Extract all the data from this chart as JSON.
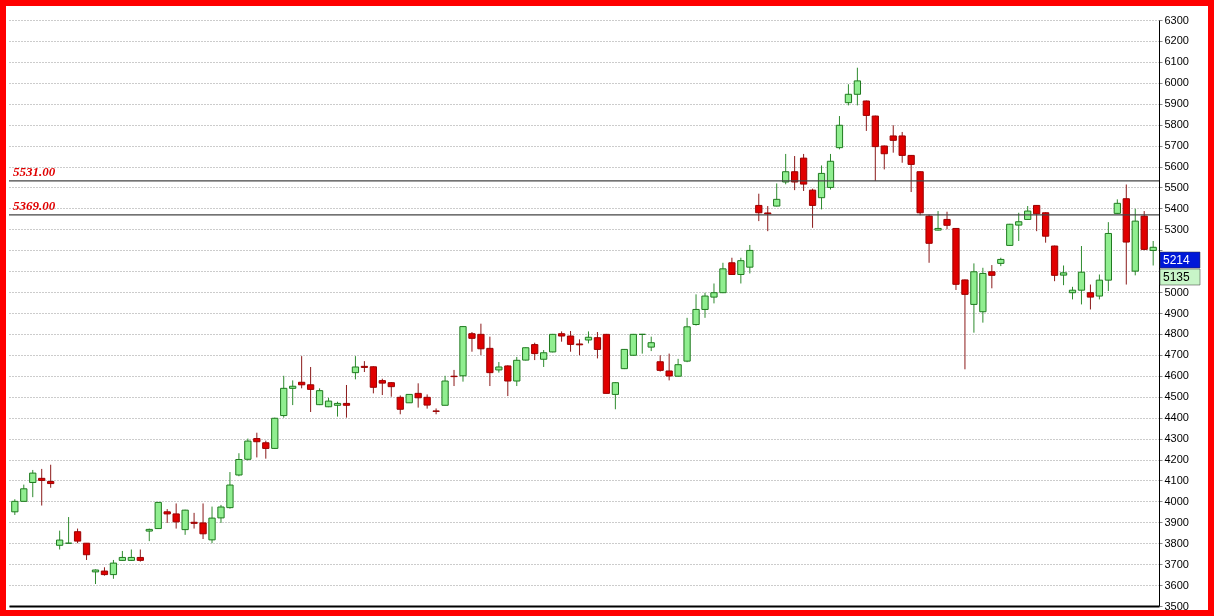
{
  "chart_data": {
    "type": "candlestick",
    "categories": [
      null,
      null,
      null,
      null,
      null,
      null,
      null,
      null,
      null,
      null,
      null,
      null,
      null,
      null,
      null,
      null,
      null,
      null,
      null,
      null,
      null,
      null,
      null,
      null,
      null,
      null,
      null,
      null,
      null,
      null,
      null,
      null,
      null,
      null,
      null,
      null,
      null,
      null,
      null,
      null,
      null,
      null,
      null,
      null,
      null,
      null,
      null,
      null,
      null,
      null,
      null,
      null,
      null,
      null,
      null,
      null,
      null,
      null,
      null,
      null,
      null,
      null,
      null,
      null,
      null,
      null,
      null,
      null,
      null,
      null,
      null,
      null,
      null,
      null,
      null,
      null,
      null,
      null,
      null,
      null,
      null,
      null,
      null,
      null,
      null,
      null,
      null,
      null,
      null,
      null,
      null,
      null,
      null,
      null,
      null,
      null,
      null,
      null,
      null,
      null,
      null,
      null,
      null,
      null,
      null,
      null,
      null,
      null,
      null,
      null,
      null,
      null,
      null,
      null,
      null,
      null,
      null,
      null,
      null,
      null,
      null,
      null,
      null,
      null,
      null,
      null,
      null,
      null
    ],
    "ohlc": [
      [
        3950,
        4010,
        3935,
        4000
      ],
      [
        4000,
        4080,
        4000,
        4060
      ],
      [
        4090,
        4150,
        4020,
        4135
      ],
      [
        4110,
        4155,
        3980,
        4100
      ],
      [
        4095,
        4175,
        4065,
        4085
      ],
      [
        3790,
        3860,
        3770,
        3815
      ],
      [
        3800,
        3925,
        3800,
        3800
      ],
      [
        3855,
        3870,
        3800,
        3810
      ],
      [
        3800,
        3800,
        3720,
        3745
      ],
      [
        3663,
        3675,
        3605,
        3672
      ],
      [
        3667,
        3685,
        3645,
        3650
      ],
      [
        3650,
        3720,
        3630,
        3705
      ],
      [
        3718,
        3763,
        3715,
        3732
      ],
      [
        3718,
        3770,
        3715,
        3732
      ],
      [
        3732,
        3770,
        3712,
        3718
      ],
      [
        3858,
        3870,
        3810,
        3866
      ],
      [
        3870,
        3997,
        3868,
        3995
      ],
      [
        3950,
        3963,
        3897,
        3940
      ],
      [
        3940,
        3990,
        3870,
        3902
      ],
      [
        3865,
        3960,
        3840,
        3958
      ],
      [
        3900,
        3945,
        3870,
        3895
      ],
      [
        3897,
        3990,
        3820,
        3845
      ],
      [
        3816,
        3975,
        3800,
        3920
      ],
      [
        3921,
        3983,
        3897,
        3973
      ],
      [
        3970,
        4140,
        3965,
        4078
      ],
      [
        4126,
        4230,
        4120,
        4200
      ],
      [
        4201,
        4300,
        4195,
        4288
      ],
      [
        4300,
        4328,
        4210,
        4285
      ],
      [
        4280,
        4290,
        4204,
        4253
      ],
      [
        4253,
        4400,
        4250,
        4397
      ],
      [
        4410,
        4600,
        4400,
        4540
      ],
      [
        4540,
        4578,
        4460,
        4550
      ],
      [
        4569,
        4694,
        4540,
        4557
      ],
      [
        4557,
        4642,
        4427,
        4535
      ],
      [
        4462,
        4540,
        4460,
        4529
      ],
      [
        4452,
        4495,
        4450,
        4479
      ],
      [
        4459,
        4476,
        4405,
        4468
      ],
      [
        4468,
        4556,
        4400,
        4459
      ],
      [
        4615,
        4694,
        4583,
        4642
      ],
      [
        4645,
        4670,
        4618,
        4640
      ],
      [
        4643,
        4645,
        4516,
        4545
      ],
      [
        4577,
        4586,
        4508,
        4565
      ],
      [
        4567,
        4570,
        4500,
        4548
      ],
      [
        4497,
        4506,
        4416,
        4440
      ],
      [
        4471,
        4512,
        4470,
        4511
      ],
      [
        4516,
        4564,
        4448,
        4495
      ],
      [
        4497,
        4511,
        4443,
        4460
      ],
      [
        4432,
        4444,
        4416,
        4430
      ],
      [
        4459,
        4600,
        4459,
        4575
      ],
      [
        4598,
        4628,
        4551,
        4596
      ],
      [
        4600,
        4838,
        4572,
        4835
      ],
      [
        4801,
        4809,
        4715,
        4779
      ],
      [
        4798,
        4849,
        4699,
        4729
      ],
      [
        4731,
        4787,
        4551,
        4615
      ],
      [
        4628,
        4666,
        4615,
        4642
      ],
      [
        4647,
        4650,
        4503,
        4575
      ],
      [
        4575,
        4690,
        4551,
        4674
      ],
      [
        4675,
        4736,
        4673,
        4734
      ],
      [
        4749,
        4758,
        4675,
        4706
      ],
      [
        4679,
        4723,
        4642,
        4710
      ],
      [
        4714,
        4800,
        4712,
        4798
      ],
      [
        4801,
        4812,
        4763,
        4790
      ],
      [
        4790,
        4814,
        4715,
        4750
      ],
      [
        4752,
        4774,
        4698,
        4748
      ],
      [
        4771,
        4812,
        4755,
        4784
      ],
      [
        4782,
        4809,
        4683,
        4726
      ],
      [
        4798,
        4800,
        4516,
        4516
      ],
      [
        4511,
        4570,
        4440,
        4567
      ],
      [
        4634,
        4728,
        4632,
        4726
      ],
      [
        4698,
        4800,
        4696,
        4798
      ],
      [
        4798,
        4800,
        4706,
        4798
      ],
      [
        4737,
        4787,
        4718,
        4758
      ],
      [
        4667,
        4698,
        4620,
        4626
      ],
      [
        4623,
        4706,
        4578,
        4599
      ],
      [
        4598,
        4681,
        4596,
        4653
      ],
      [
        4670,
        4877,
        4665,
        4834
      ],
      [
        4845,
        4989,
        4840,
        4917
      ],
      [
        4917,
        4997,
        4877,
        4981
      ],
      [
        4976,
        5041,
        4946,
        4997
      ],
      [
        4997,
        5140,
        4995,
        5111
      ],
      [
        5140,
        5164,
        5082,
        5084
      ],
      [
        5084,
        5164,
        5041,
        5150
      ],
      [
        5119,
        5225,
        5089,
        5199
      ],
      [
        5414,
        5470,
        5339,
        5379
      ],
      [
        5378,
        5411,
        5291,
        5374
      ],
      [
        5411,
        5519,
        5409,
        5443
      ],
      [
        5526,
        5660,
        5515,
        5575
      ],
      [
        5575,
        5650,
        5487,
        5526
      ],
      [
        5640,
        5660,
        5483,
        5516
      ],
      [
        5487,
        5494,
        5307,
        5414
      ],
      [
        5451,
        5605,
        5395,
        5567
      ],
      [
        5500,
        5660,
        5490,
        5625
      ],
      [
        5690,
        5841,
        5682,
        5797
      ],
      [
        5905,
        5993,
        5892,
        5945
      ],
      [
        5945,
        6072,
        5892,
        6009
      ],
      [
        5913,
        5915,
        5770,
        5844
      ],
      [
        5841,
        5843,
        5531,
        5695
      ],
      [
        5698,
        5700,
        5586,
        5661
      ],
      [
        5746,
        5797,
        5666,
        5725
      ],
      [
        5746,
        5765,
        5618,
        5653
      ],
      [
        5653,
        5655,
        5478,
        5610
      ],
      [
        5575,
        5577,
        5367,
        5379
      ],
      [
        5363,
        5370,
        5140,
        5233
      ],
      [
        5296,
        5387,
        5294,
        5304
      ],
      [
        5347,
        5384,
        5300,
        5319
      ],
      [
        5304,
        5306,
        5010,
        5037
      ],
      [
        5058,
        5060,
        4631,
        4989
      ],
      [
        4941,
        5137,
        4806,
        5097
      ],
      [
        4906,
        5116,
        4854,
        5089
      ],
      [
        5097,
        5129,
        5018,
        5080
      ],
      [
        5137,
        5164,
        5124,
        5156
      ],
      [
        5223,
        5326,
        5221,
        5324
      ],
      [
        5320,
        5379,
        5244,
        5336
      ],
      [
        5347,
        5411,
        5345,
        5387
      ],
      [
        5414,
        5416,
        5291,
        5374
      ],
      [
        5379,
        5381,
        5236,
        5267
      ],
      [
        5220,
        5222,
        5052,
        5080
      ],
      [
        5081,
        5127,
        5033,
        5092
      ],
      [
        4997,
        5025,
        4965,
        5009
      ],
      [
        5009,
        5220,
        4941,
        5095
      ],
      [
        4997,
        5036,
        4917,
        4976
      ],
      [
        4981,
        5084,
        4965,
        5057
      ],
      [
        5057,
        5334,
        5005,
        5280
      ],
      [
        5376,
        5443,
        5374,
        5424
      ],
      [
        5446,
        5514,
        5036,
        5239
      ],
      [
        5100,
        5398,
        5080,
        5339
      ],
      [
        5363,
        5387,
        5200,
        5204
      ],
      [
        5199,
        5244,
        5127,
        5214
      ]
    ],
    "ylim": [
      3500,
      6300
    ],
    "yticks": [
      3500,
      3600,
      3700,
      3800,
      3900,
      4000,
      4100,
      4200,
      4300,
      4400,
      4500,
      4600,
      4700,
      4800,
      4900,
      5000,
      {
        "value": 5100,
        "label": null
      },
      {
        "value": 5200,
        "label": null
      },
      5300,
      5400,
      5500,
      5600,
      5700,
      5800,
      5900,
      6000,
      6100,
      6200,
      6300
    ],
    "grid": "y",
    "ref_lines": [
      {
        "axis": "y",
        "value": 5531,
        "label": "5531.00"
      },
      {
        "axis": "y",
        "value": 5369,
        "label": "5369.00"
      }
    ],
    "annotations": [
      "5214",
      "5135"
    ]
  }
}
